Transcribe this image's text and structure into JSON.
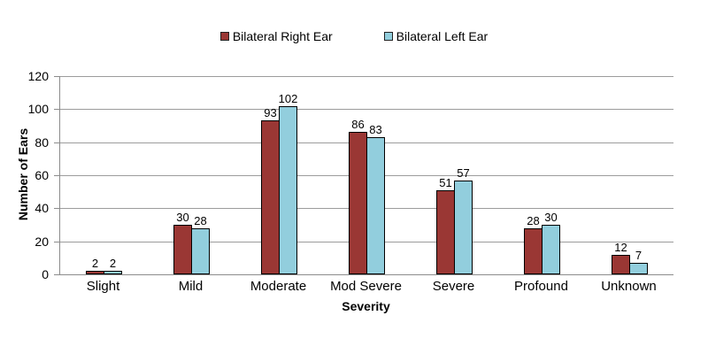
{
  "chart_data": {
    "type": "bar",
    "title": "",
    "categories": [
      "Slight",
      "Mild",
      "Moderate",
      "Mod Severe",
      "Severe",
      "Profound",
      "Unknown"
    ],
    "series": [
      {
        "name": "Bilateral Right Ear",
        "color": "#9A3734",
        "values": [
          2,
          30,
          93,
          86,
          51,
          28,
          12
        ]
      },
      {
        "name": "Bilateral Left Ear",
        "color": "#92CEDD",
        "values": [
          2,
          28,
          102,
          83,
          57,
          30,
          7
        ]
      }
    ],
    "xlabel": "Severity",
    "ylabel": "Number of Ears",
    "ylim": [
      0,
      120
    ],
    "ytick_step": 20,
    "yticks": [
      0,
      20,
      40,
      60,
      80,
      100,
      120
    ],
    "grid": true,
    "legend_position": "top",
    "bar_border_color": "#000000",
    "gridline_color": "#9C9C9C",
    "axis_color": "#8C8C8C",
    "label_color": "#000000",
    "background_color": "#FFFFFF"
  }
}
